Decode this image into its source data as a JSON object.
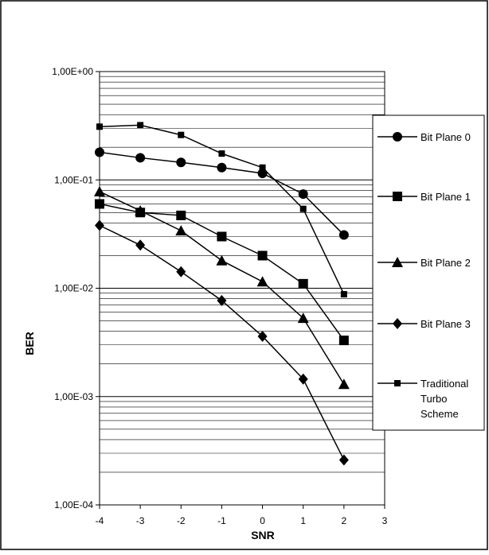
{
  "chart_data": {
    "type": "line",
    "xlabel": "SNR",
    "ylabel": "BER",
    "xlim": [
      -4,
      3
    ],
    "x_ticks": [
      -4,
      -3,
      -2,
      -1,
      0,
      1,
      2,
      3
    ],
    "x_tick_labels": [
      "-4",
      "-3",
      "-2",
      "-1",
      "0",
      "1",
      "2",
      "3"
    ],
    "y_scale": "log",
    "ylim": [
      0.0001,
      1
    ],
    "y_ticks": [
      0.0001,
      0.001,
      0.01,
      0.1,
      1
    ],
    "y_tick_labels": [
      "1,00E-04",
      "1,00E-03",
      "1,00E-02",
      "1,00E-01",
      "1,00E+00"
    ],
    "grid": "horizontal major and minor lines",
    "legend_position": "right",
    "series": [
      {
        "name": "Bit Plane 0",
        "marker": "circle",
        "x": [
          -4,
          -3,
          -2,
          -1,
          0,
          1,
          2
        ],
        "y": [
          0.18,
          0.16,
          0.145,
          0.13,
          0.115,
          0.074,
          0.031
        ]
      },
      {
        "name": "Bit Plane 1",
        "marker": "square",
        "x": [
          -4,
          -3,
          -2,
          -1,
          0,
          1,
          2
        ],
        "y": [
          0.06,
          0.05,
          0.047,
          0.03,
          0.02,
          0.011,
          0.0033
        ]
      },
      {
        "name": "Bit Plane 2",
        "marker": "triangle",
        "x": [
          -4,
          -3,
          -2,
          -1,
          0,
          1,
          2
        ],
        "y": [
          0.078,
          0.052,
          0.034,
          0.018,
          0.0115,
          0.0053,
          0.0013
        ]
      },
      {
        "name": "Bit Plane 3",
        "marker": "diamond",
        "x": [
          -4,
          -3,
          -2,
          -1,
          0,
          1,
          2
        ],
        "y": [
          0.038,
          0.025,
          0.0142,
          0.0077,
          0.0036,
          0.00145,
          0.00026
        ]
      },
      {
        "name": "Traditional Turbo Scheme",
        "legend_lines": [
          "Traditional",
          "Turbo",
          "Scheme"
        ],
        "marker": "small-square",
        "x": [
          -4,
          -3,
          -2,
          -1,
          0,
          1,
          2
        ],
        "y": [
          0.31,
          0.32,
          0.26,
          0.175,
          0.13,
          0.054,
          0.0088
        ]
      }
    ]
  }
}
